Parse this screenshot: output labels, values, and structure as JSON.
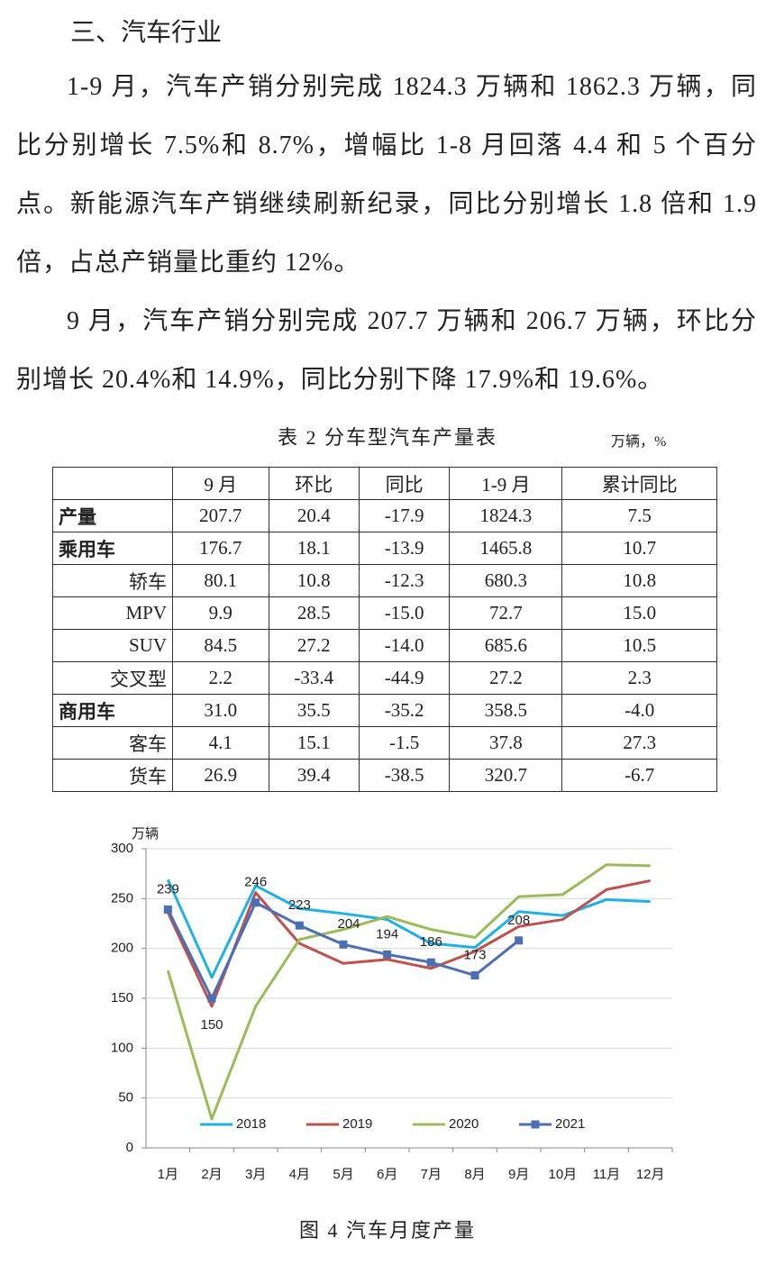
{
  "heading": "三、汽车行业",
  "paragraphs": [
    "1-9 月，汽车产销分别完成 1824.3 万辆和 1862.3 万辆，同比分别增长 7.5%和 8.7%，增幅比 1-8 月回落 4.4 和 5 个百分点。新能源汽车产销继续刷新纪录，同比分别增长 1.8 倍和 1.9 倍，占总产销量比重约 12%。",
    "9 月，汽车产销分别完成 207.7 万辆和 206.7 万辆，环比分别增长 20.4%和 14.9%，同比分别下降 17.9%和 19.6%。"
  ],
  "table": {
    "caption": "表 2 分车型汽车产量表",
    "unit": "万辆，%",
    "header": [
      "9 月",
      "环比",
      "同比",
      "1-9 月",
      "累计同比"
    ],
    "rows": [
      {
        "label": "产量",
        "cells": [
          "207.7",
          "20.4",
          "-17.9",
          "1824.3",
          "7.5"
        ]
      },
      {
        "label": "乘用车",
        "cells": [
          "176.7",
          "18.1",
          "-13.9",
          "1465.8",
          "10.7"
        ]
      },
      {
        "label": "轿车",
        "cells": [
          "80.1",
          "10.8",
          "-12.3",
          "680.3",
          "10.8"
        ]
      },
      {
        "label": "MPV",
        "cells": [
          "9.9",
          "28.5",
          "-15.0",
          "72.7",
          "15.0"
        ]
      },
      {
        "label": "SUV",
        "cells": [
          "84.5",
          "27.2",
          "-14.0",
          "685.6",
          "10.5"
        ]
      },
      {
        "label": "交叉型",
        "cells": [
          "2.2",
          "-33.4",
          "-44.9",
          "27.2",
          "2.3"
        ]
      },
      {
        "label": "商用车",
        "cells": [
          "31.0",
          "35.5",
          "-35.2",
          "358.5",
          "-4.0"
        ]
      },
      {
        "label": "客车",
        "cells": [
          "4.1",
          "15.1",
          "-1.5",
          "37.8",
          "27.3"
        ]
      },
      {
        "label": "货车",
        "cells": [
          "26.9",
          "39.4",
          "-38.5",
          "320.7",
          "-6.7"
        ]
      }
    ]
  },
  "chart_data": {
    "type": "line",
    "caption": "图 4 汽车月度产量",
    "y_label": "万辆",
    "categories": [
      "1月",
      "2月",
      "3月",
      "4月",
      "5月",
      "6月",
      "7月",
      "8月",
      "9月",
      "10月",
      "11月",
      "12月"
    ],
    "series": [
      {
        "name": "2018",
        "color": "#1fb1e6",
        "values": [
          269,
          171,
          263,
          240,
          235,
          229,
          205,
          201,
          237,
          233,
          249,
          247
        ]
      },
      {
        "name": "2019",
        "color": "#c0504d",
        "values": [
          236,
          142,
          256,
          205,
          185,
          189,
          180,
          197,
          222,
          229,
          259,
          268
        ]
      },
      {
        "name": "2020",
        "color": "#9bbb59",
        "values": [
          178,
          29,
          142,
          209,
          219,
          232,
          219,
          211,
          252,
          254,
          284,
          283
        ]
      },
      {
        "name": "2021",
        "color": "#4a6fb5",
        "marker": "square",
        "data_labels": true,
        "values": [
          239,
          150,
          246,
          223,
          204,
          194,
          186,
          173,
          208,
          null,
          null,
          null
        ]
      }
    ],
    "ylim": [
      0,
      300
    ],
    "yticks": [
      0,
      50,
      100,
      150,
      200,
      250,
      300
    ],
    "grid": true,
    "legend": "lower center"
  }
}
